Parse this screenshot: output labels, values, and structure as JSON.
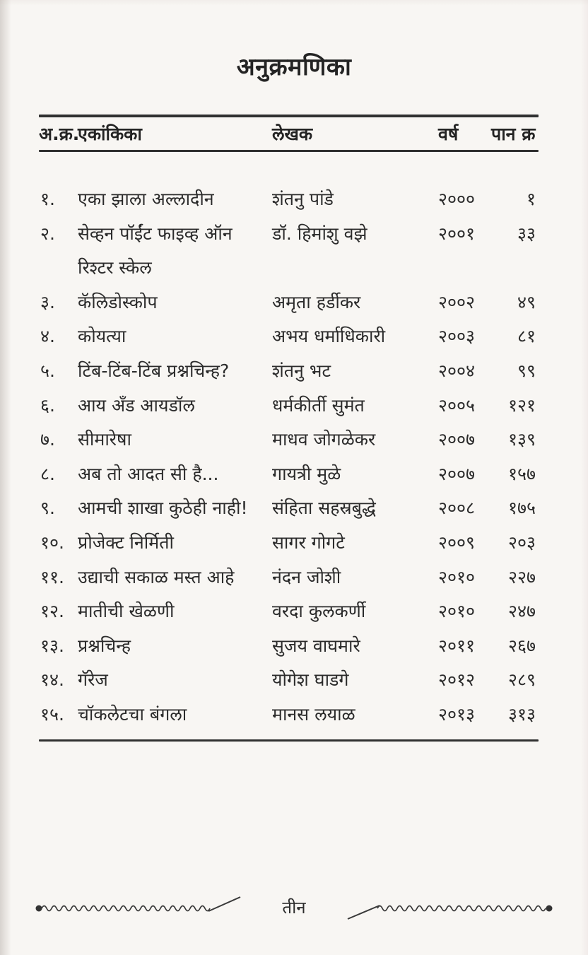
{
  "page": {
    "title": "अनुक्रमणिका",
    "footer_page_label": "तीन"
  },
  "table": {
    "headers": {
      "serial": "अ.क्र.",
      "play": "एकांकिका",
      "author": "लेखक",
      "year": "वर्ष",
      "page": "पान क्र"
    },
    "rows": [
      {
        "serial": "१.",
        "title_lines": [
          "एका झाला अल्लादीन"
        ],
        "author": "शंतनु पांडे",
        "year": "२०००",
        "page": "१"
      },
      {
        "serial": "२.",
        "title_lines": [
          "सेव्हन पॉईंट फाइव्ह ऑन",
          "रिश्टर स्केल"
        ],
        "author": "डॉ. हिमांशु वझे",
        "year": "२००१",
        "page": "३३"
      },
      {
        "serial": "३.",
        "title_lines": [
          "कॅलिडोस्कोप"
        ],
        "author": "अमृता हर्डीकर",
        "year": "२००२",
        "page": "४९"
      },
      {
        "serial": "४.",
        "title_lines": [
          "कोयत्या"
        ],
        "author": "अभय धर्माधिकारी",
        "year": "२००३",
        "page": "८१"
      },
      {
        "serial": "५.",
        "title_lines": [
          "टिंब-टिंब-टिंब प्रश्नचिन्ह?"
        ],
        "author": "शंतनु भट",
        "year": "२००४",
        "page": "९९"
      },
      {
        "serial": "६.",
        "title_lines": [
          "आय अँड आयडॉल"
        ],
        "author": "धर्मकीर्ती सुमंत",
        "year": "२००५",
        "page": "१२१"
      },
      {
        "serial": "७.",
        "title_lines": [
          "सीमारेषा"
        ],
        "author": "माधव जोगळेकर",
        "year": "२००७",
        "page": "१३९"
      },
      {
        "serial": "८.",
        "title_lines": [
          "अब तो आदत सी है..."
        ],
        "author": "गायत्री मुळे",
        "year": "२००७",
        "page": "१५७"
      },
      {
        "serial": "९.",
        "title_lines": [
          "आमची शाखा कुठेही नाही!"
        ],
        "author": "संहिता सहस्रबुद्धे",
        "year": "२००८",
        "page": "१७५"
      },
      {
        "serial": "१०.",
        "title_lines": [
          "प्रोजेक्ट निर्मिती"
        ],
        "author": "सागर गोगटे",
        "year": "२००९",
        "page": "२०३"
      },
      {
        "serial": "११.",
        "title_lines": [
          "उद्याची सकाळ मस्त आहे"
        ],
        "author": "नंदन जोशी",
        "year": "२०१०",
        "page": "२२७"
      },
      {
        "serial": "१२.",
        "title_lines": [
          "मातीची खेळणी"
        ],
        "author": "वरदा कुलकर्णी",
        "year": "२०१०",
        "page": "२४७"
      },
      {
        "serial": "१३.",
        "title_lines": [
          "प्रश्नचिन्ह"
        ],
        "author": "सुजय वाघमारे",
        "year": "२०११",
        "page": "२६७"
      },
      {
        "serial": "१४.",
        "title_lines": [
          "गॅरेज"
        ],
        "author": "योगेश घाडगे",
        "year": "२०१२",
        "page": "२८९"
      },
      {
        "serial": "१५.",
        "title_lines": [
          "चॉकलेटचा बंगला"
        ],
        "author": "मानस लयाळ",
        "year": "२०१३",
        "page": "३१३"
      }
    ]
  },
  "icons": {
    "footer_left": "wavy-rule-with-end-dot",
    "footer_right": "wavy-rule-with-end-dot"
  },
  "colors": {
    "ink": "#2b2b2b",
    "rule": "#303030",
    "paper": "#f8f6f3"
  }
}
